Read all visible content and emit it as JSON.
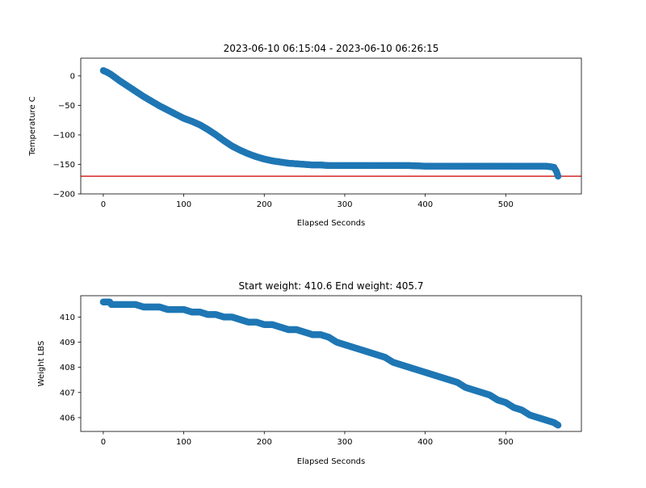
{
  "chart_data": [
    {
      "type": "scatter",
      "title": "2023-06-10 06:15:04 - 2023-06-10 06:26:15",
      "xlabel": "Elapsed Seconds",
      "ylabel": "Temperature C",
      "xlim": [
        -28,
        594
      ],
      "ylim": [
        -200,
        30
      ],
      "xticks": [
        0,
        100,
        200,
        300,
        400,
        500
      ],
      "yticks": [
        0,
        -50,
        -100,
        -150,
        -200
      ],
      "xtick_labels": [
        "0",
        "100",
        "200",
        "300",
        "400",
        "500"
      ],
      "ytick_labels": [
        "0",
        "−50",
        "−100",
        "−150",
        "−200"
      ],
      "reference_line": {
        "y": -170,
        "color": "#d62728"
      },
      "marker_color": "#1f77b4",
      "series": [
        {
          "x": [
            0,
            5,
            10,
            15,
            20,
            30,
            40,
            50,
            60,
            70,
            80,
            90,
            100,
            110,
            120,
            130,
            140,
            150,
            160,
            170,
            180,
            190,
            200,
            210,
            220,
            230,
            240,
            250,
            260,
            270,
            280,
            300,
            320,
            340,
            360,
            380,
            400,
            420,
            440,
            460,
            480,
            500,
            520,
            540,
            550,
            556,
            560,
            563,
            565
          ],
          "y": [
            9,
            6,
            2,
            -3,
            -8,
            -17,
            -26,
            -35,
            -43,
            -51,
            -58,
            -65,
            -72,
            -77,
            -83,
            -91,
            -100,
            -110,
            -119,
            -126,
            -132,
            -137,
            -141,
            -144,
            -146,
            -148,
            -149,
            -150,
            -151,
            -151,
            -152,
            -152,
            -152,
            -152,
            -152,
            -152,
            -153,
            -153,
            -153,
            -153,
            -153,
            -153,
            -153,
            -153,
            -153,
            -154,
            -155,
            -162,
            -170
          ]
        }
      ]
    },
    {
      "type": "scatter",
      "title": "Start weight: 410.6 End weight: 405.7",
      "xlabel": "Elapsed Seconds",
      "ylabel": "Weight LBS",
      "xlim": [
        -28,
        594
      ],
      "ylim": [
        405.45,
        410.85
      ],
      "xticks": [
        0,
        100,
        200,
        300,
        400,
        500
      ],
      "yticks": [
        406,
        407,
        408,
        409,
        410
      ],
      "xtick_labels": [
        "0",
        "100",
        "200",
        "300",
        "400",
        "500"
      ],
      "ytick_labels": [
        "406",
        "407",
        "408",
        "409",
        "410"
      ],
      "marker_color": "#1f77b4",
      "series": [
        {
          "x": [
            0,
            8,
            10,
            20,
            30,
            40,
            50,
            60,
            70,
            80,
            90,
            100,
            110,
            120,
            130,
            140,
            150,
            160,
            170,
            180,
            190,
            200,
            210,
            220,
            230,
            240,
            250,
            260,
            270,
            280,
            290,
            300,
            310,
            320,
            330,
            340,
            350,
            360,
            370,
            380,
            390,
            400,
            410,
            420,
            430,
            440,
            450,
            460,
            470,
            480,
            490,
            500,
            510,
            520,
            530,
            540,
            550,
            560,
            565
          ],
          "y": [
            410.6,
            410.6,
            410.5,
            410.5,
            410.5,
            410.5,
            410.4,
            410.4,
            410.4,
            410.3,
            410.3,
            410.3,
            410.2,
            410.2,
            410.1,
            410.1,
            410.0,
            410.0,
            409.9,
            409.8,
            409.8,
            409.7,
            409.7,
            409.6,
            409.5,
            409.5,
            409.4,
            409.3,
            409.3,
            409.2,
            409.0,
            408.9,
            408.8,
            408.7,
            408.6,
            408.5,
            408.4,
            408.2,
            408.1,
            408.0,
            407.9,
            407.8,
            407.7,
            407.6,
            407.5,
            407.4,
            407.2,
            407.1,
            407.0,
            406.9,
            406.7,
            406.6,
            406.4,
            406.3,
            406.1,
            406.0,
            405.9,
            405.8,
            405.7
          ]
        }
      ]
    }
  ]
}
